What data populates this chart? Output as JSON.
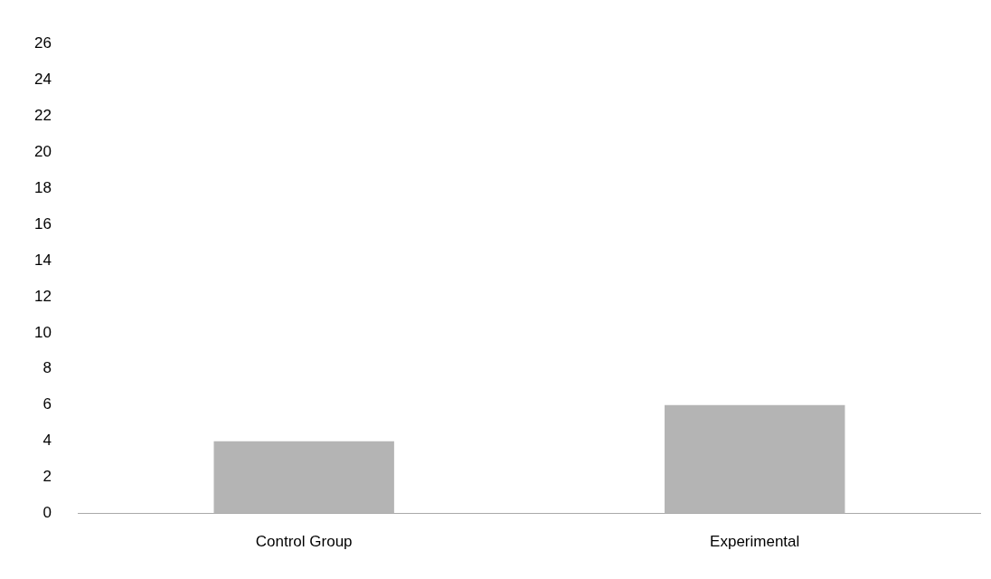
{
  "chart_data": {
    "type": "bar",
    "categories": [
      "Control Group",
      "Experimental"
    ],
    "values": [
      4,
      6
    ],
    "color": "#b4b4b4",
    "ylim": [
      0,
      26
    ],
    "yticks": [
      0,
      2,
      4,
      6,
      8,
      10,
      12,
      14,
      16,
      18,
      20,
      22,
      24,
      26
    ],
    "grid": false,
    "legend": false
  }
}
